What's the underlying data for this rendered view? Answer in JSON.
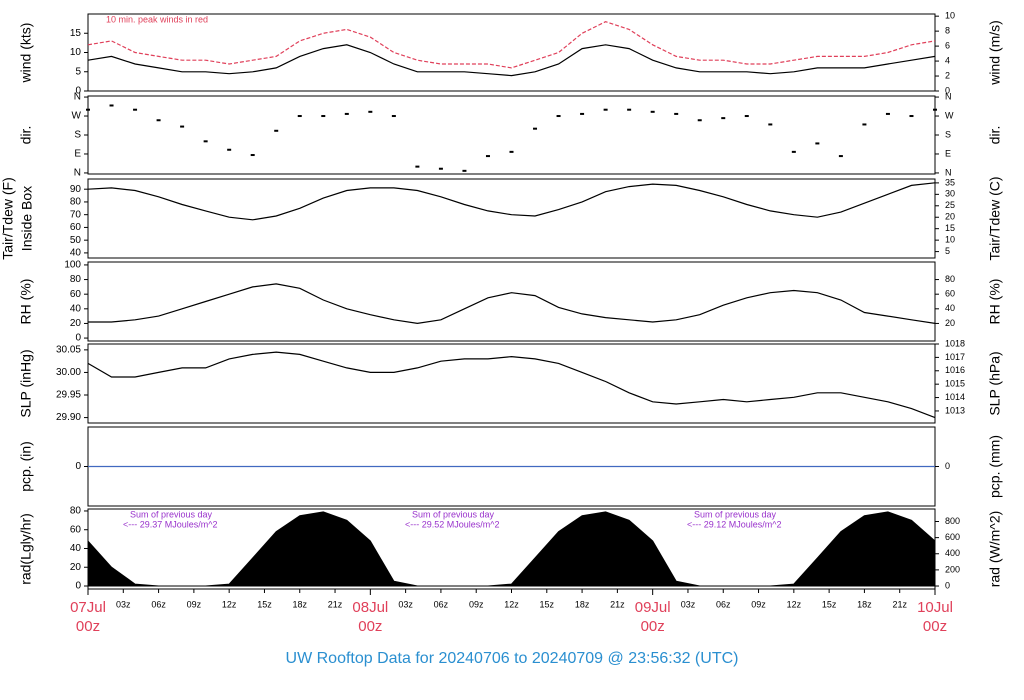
{
  "title": "UW Rooftop Data for 20240706  to  20240709 @ 23:56:32  (UTC)",
  "chart_data": [
    {
      "type": "line",
      "ylabel": "wind (kts)",
      "y2label": "wind (m/s)",
      "annotation": "10 min. peak winds in red",
      "xlim": [
        0,
        72
      ],
      "ylim": [
        0,
        20
      ],
      "yticks": [
        0,
        5,
        10,
        15
      ],
      "y2lim": [
        0,
        10.29
      ],
      "y2ticks": [
        0,
        2,
        4,
        6,
        8,
        10
      ],
      "x": [
        0,
        2,
        4,
        6,
        8,
        10,
        12,
        14,
        16,
        18,
        20,
        22,
        24,
        26,
        28,
        30,
        32,
        34,
        36,
        38,
        40,
        42,
        44,
        46,
        48,
        50,
        52,
        54,
        56,
        58,
        60,
        62,
        64,
        66,
        68,
        70,
        72
      ],
      "series": [
        {
          "color": "#000000",
          "values": [
            8,
            9,
            7,
            6,
            5,
            5,
            4.5,
            5,
            6,
            9,
            11,
            12,
            10,
            7,
            5,
            5,
            5,
            4.5,
            4,
            5,
            7,
            11,
            12,
            11,
            8,
            6,
            5,
            5,
            5,
            4.5,
            5,
            6,
            6,
            6,
            7,
            8,
            9
          ]
        },
        {
          "color": "#e0405a",
          "values": [
            12,
            13,
            10,
            9,
            8,
            8,
            7,
            8,
            9,
            13,
            15,
            16,
            14,
            10,
            8,
            7,
            7,
            7,
            6,
            8,
            10,
            15,
            18,
            16,
            12,
            9,
            8,
            8,
            7,
            7,
            8,
            9,
            9,
            9,
            10,
            12,
            13
          ]
        }
      ]
    },
    {
      "type": "scatter",
      "ylabel": "dir.",
      "y2label": "dir.",
      "xlim": [
        0,
        72
      ],
      "ylim": [
        -5,
        365
      ],
      "yticks": [
        {
          "value": 0,
          "label": "N"
        },
        {
          "value": 90,
          "label": "E"
        },
        {
          "value": 180,
          "label": "S"
        },
        {
          "value": 270,
          "label": "W"
        },
        {
          "value": 360,
          "label": "N"
        }
      ],
      "y2lim": [
        -5,
        365
      ],
      "y2ticks": [
        {
          "value": 0,
          "label": "N"
        },
        {
          "value": 90,
          "label": "E"
        },
        {
          "value": 180,
          "label": "S"
        },
        {
          "value": 270,
          "label": "W"
        },
        {
          "value": 360,
          "label": "N"
        }
      ],
      "x": [
        0,
        2,
        4,
        6,
        8,
        10,
        12,
        14,
        16,
        18,
        20,
        22,
        24,
        26,
        28,
        30,
        32,
        34,
        36,
        38,
        40,
        42,
        44,
        46,
        48,
        50,
        52,
        54,
        56,
        58,
        60,
        62,
        64,
        66,
        68,
        70,
        72
      ],
      "series": [
        {
          "color": "#000000",
          "values": [
            300,
            320,
            300,
            250,
            220,
            150,
            110,
            85,
            200,
            270,
            270,
            280,
            290,
            270,
            30,
            20,
            10,
            80,
            100,
            210,
            270,
            280,
            300,
            300,
            290,
            280,
            250,
            260,
            270,
            230,
            100,
            140,
            80,
            230,
            280,
            270,
            300
          ]
        }
      ]
    },
    {
      "type": "line",
      "ylabel": [
        "Tair/Tdew (F)",
        "Inside Box"
      ],
      "y2label": "Tair/Tdew (C)",
      "xlim": [
        0,
        72
      ],
      "ylim": [
        36,
        98
      ],
      "yticks": [
        40,
        50,
        60,
        70,
        80,
        90
      ],
      "y2lim": [
        2.2,
        36.7
      ],
      "y2ticks": [
        5,
        10,
        15,
        20,
        25,
        30,
        35
      ],
      "x": [
        0,
        2,
        4,
        6,
        8,
        10,
        12,
        14,
        16,
        18,
        20,
        22,
        24,
        26,
        28,
        30,
        32,
        34,
        36,
        38,
        40,
        42,
        44,
        46,
        48,
        50,
        52,
        54,
        56,
        58,
        60,
        62,
        64,
        66,
        68,
        70,
        72
      ],
      "series": [
        {
          "color": "#000000",
          "values": [
            90,
            91,
            89,
            84,
            78,
            73,
            68,
            66,
            69,
            75,
            83,
            89,
            91,
            91,
            89,
            84,
            78,
            73,
            70,
            69,
            74,
            80,
            88,
            92,
            94,
            93,
            89,
            84,
            78,
            73,
            70,
            68,
            72,
            79,
            86,
            93,
            95
          ]
        }
      ]
    },
    {
      "type": "line",
      "ylabel": "RH (%)",
      "y2label": "RH (%)",
      "xlim": [
        0,
        72
      ],
      "ylim": [
        -4,
        104
      ],
      "yticks": [
        0,
        20,
        40,
        60,
        80,
        100
      ],
      "y2lim": [
        -4,
        104
      ],
      "y2ticks": [
        20,
        40,
        60,
        80
      ],
      "x": [
        0,
        2,
        4,
        6,
        8,
        10,
        12,
        14,
        16,
        18,
        20,
        22,
        24,
        26,
        28,
        30,
        32,
        34,
        36,
        38,
        40,
        42,
        44,
        46,
        48,
        50,
        52,
        54,
        56,
        58,
        60,
        62,
        64,
        66,
        68,
        70,
        72
      ],
      "series": [
        {
          "color": "#000000",
          "values": [
            22,
            22,
            25,
            30,
            40,
            50,
            60,
            70,
            74,
            68,
            52,
            40,
            32,
            25,
            20,
            25,
            40,
            55,
            62,
            58,
            42,
            33,
            28,
            25,
            22,
            25,
            32,
            45,
            55,
            62,
            65,
            62,
            52,
            35,
            30,
            25,
            20
          ]
        }
      ]
    },
    {
      "type": "line",
      "ylabel": "SLP (inHg)",
      "y2label": "SLP (hPa)",
      "xlim": [
        0,
        72
      ],
      "ylim": [
        29.888,
        30.063
      ],
      "yticks": [
        {
          "value": 29.9,
          "label": "29.90"
        },
        29.95,
        {
          "value": 30,
          "label": "30.00"
        },
        30.05
      ],
      "y2lim": [
        1012.1,
        1018.0
      ],
      "y2ticks": [
        1013,
        1014,
        1015,
        1016,
        1017,
        1018
      ],
      "x": [
        0,
        2,
        4,
        6,
        8,
        10,
        12,
        14,
        16,
        18,
        20,
        22,
        24,
        26,
        28,
        30,
        32,
        34,
        36,
        38,
        40,
        42,
        44,
        46,
        48,
        50,
        52,
        54,
        56,
        58,
        60,
        62,
        64,
        66,
        68,
        70,
        72
      ],
      "series": [
        {
          "color": "#000000",
          "values": [
            30.02,
            29.99,
            29.99,
            30.0,
            30.01,
            30.01,
            30.03,
            30.04,
            30.045,
            30.04,
            30.025,
            30.01,
            30.0,
            30.0,
            30.01,
            30.025,
            30.03,
            30.03,
            30.035,
            30.03,
            30.02,
            30.0,
            29.98,
            29.955,
            29.935,
            29.93,
            29.935,
            29.94,
            29.935,
            29.94,
            29.945,
            29.955,
            29.955,
            29.945,
            29.935,
            29.92,
            29.9
          ]
        }
      ]
    },
    {
      "type": "line",
      "ylabel": "pcp. (in)",
      "y2label": "pcp. (mm)",
      "xlim": [
        0,
        72
      ],
      "ylim": [
        -1,
        1
      ],
      "yticks": [
        0
      ],
      "y2lim": [
        -25.4,
        25.4
      ],
      "y2ticks": [
        0
      ],
      "x": [
        0,
        72
      ],
      "series": [
        {
          "color": "#4169c0",
          "values": [
            0,
            0
          ]
        }
      ]
    },
    {
      "type": "area",
      "ylabel": "rad(Lgly/hr)",
      "y2label": "rad (W/m^2)",
      "xlim": [
        0,
        72
      ],
      "ylim": [
        -3.2,
        82.1
      ],
      "yticks": [
        0,
        20,
        40,
        60,
        80
      ],
      "y2lim": [
        -37,
        955
      ],
      "y2ticks": [
        0,
        200,
        400,
        600,
        800
      ],
      "annotations": [
        "Sum of previous day",
        "<--- 29.37 MJoules/m^2",
        "Sum of previous day",
        "<--- 29.52 MJoules/m^2",
        "Sum of previous day",
        "<--- 29.12 MJoules/m^2"
      ],
      "x": [
        0,
        2,
        4,
        6,
        8,
        10,
        12,
        14,
        16,
        18,
        20,
        22,
        24,
        26,
        28,
        30,
        32,
        34,
        36,
        38,
        40,
        42,
        44,
        46,
        48,
        50,
        52,
        54,
        56,
        58,
        60,
        62,
        64,
        66,
        68,
        70,
        72
      ],
      "series": [
        {
          "color": "#000000",
          "values": [
            48,
            20,
            2,
            0,
            0,
            0,
            2,
            30,
            58,
            75,
            79,
            70,
            48,
            5,
            0,
            0,
            0,
            0,
            2,
            30,
            58,
            75,
            79,
            70,
            48,
            5,
            0,
            0,
            0,
            0,
            2,
            30,
            58,
            75,
            79,
            70,
            48
          ]
        }
      ],
      "xticks": [
        {
          "value": 3,
          "label": "03z"
        },
        {
          "value": 6,
          "label": "06z"
        },
        {
          "value": 9,
          "label": "09z"
        },
        {
          "value": 12,
          "label": "12z"
        },
        {
          "value": 15,
          "label": "15z"
        },
        {
          "value": 18,
          "label": "18z"
        },
        {
          "value": 21,
          "label": "21z"
        },
        {
          "value": 27,
          "label": "03z"
        },
        {
          "value": 30,
          "label": "06z"
        },
        {
          "value": 33,
          "label": "09z"
        },
        {
          "value": 36,
          "label": "12z"
        },
        {
          "value": 39,
          "label": "15z"
        },
        {
          "value": 42,
          "label": "18z"
        },
        {
          "value": 45,
          "label": "21z"
        },
        {
          "value": 51,
          "label": "03z"
        },
        {
          "value": 54,
          "label": "06z"
        },
        {
          "value": 57,
          "label": "09z"
        },
        {
          "value": 60,
          "label": "12z"
        },
        {
          "value": 63,
          "label": "15z"
        },
        {
          "value": 66,
          "label": "18z"
        },
        {
          "value": 69,
          "label": "21z"
        }
      ],
      "day_ticks": [
        {
          "value": 0,
          "label": "07Jul",
          "label2": "00z"
        },
        {
          "value": 24,
          "label": "08Jul",
          "label2": "00z"
        },
        {
          "value": 48,
          "label": "09Jul",
          "label2": "00z"
        },
        {
          "value": 72,
          "label": "10Jul",
          "label2": "00z"
        }
      ]
    }
  ]
}
